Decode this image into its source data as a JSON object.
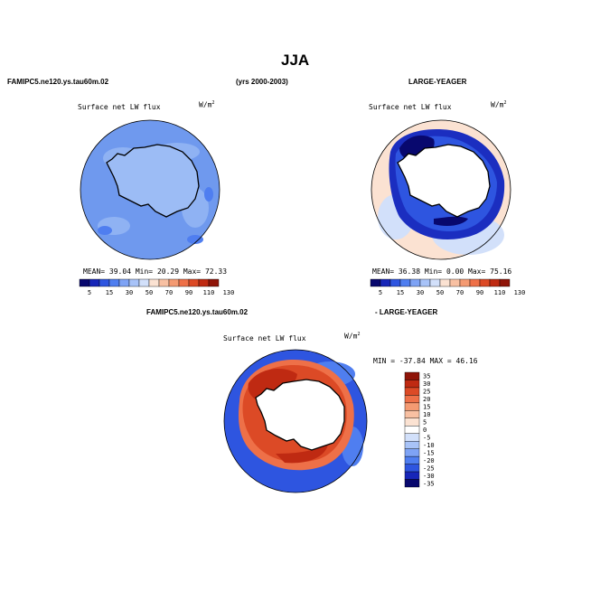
{
  "title": "JJA",
  "header_left": "FAMIPC5.ne120.ys.tau60m.02",
  "header_center": "(yrs 2000-2003)",
  "header_right": "LARGE-YEAGER",
  "panels": [
    {
      "label": "Surface net LW flux",
      "unit_base": "W/m",
      "unit_exp": "2",
      "stats": {
        "mean_label": "MEAN=",
        "mean": "39.04",
        "min_label": "Min=",
        "min": "20.29",
        "max_label": "Max=",
        "max": "72.33"
      }
    },
    {
      "label": "Surface net LW flux",
      "unit_base": "W/m",
      "unit_exp": "2",
      "stats": {
        "mean_label": "MEAN=",
        "mean": "36.38",
        "min_label": "Min=",
        "min": "0.00",
        "max_label": "Max=",
        "max": "75.16"
      }
    }
  ],
  "colorbar_top": {
    "ticks": [
      "5",
      "15",
      "30",
      "50",
      "70",
      "90",
      "110",
      "130"
    ],
    "colors": [
      "#08086e",
      "#1726b8",
      "#2e55e0",
      "#4f7ef0",
      "#7ea3f5",
      "#a8c3f8",
      "#d2e0fa",
      "#fbe2d2",
      "#f8c0a2",
      "#f49a72",
      "#ee7048",
      "#dc4a26",
      "#bf2a12",
      "#8f1408"
    ]
  },
  "diff_header_left": "FAMIPC5.ne120.ys.tau60m.02",
  "diff_header_right": "- LARGE-YEAGER",
  "diff_panel": {
    "label": "Surface net LW flux",
    "unit_base": "W/m",
    "unit_exp": "2",
    "minmax": "MIN = -37.84 MAX =  46.16"
  },
  "colorbar_diff": {
    "ticks": [
      "35",
      "30",
      "25",
      "20",
      "15",
      "10",
      "5",
      "0",
      "-5",
      "-10",
      "-15",
      "-20",
      "-25",
      "-30",
      "-35"
    ],
    "colors": [
      "#8f1408",
      "#bf2a12",
      "#dc4a26",
      "#ee7048",
      "#f49a72",
      "#f8c0a2",
      "#fbe2d2",
      "#ffffff",
      "#d2e0fa",
      "#a8c3f8",
      "#7ea3f5",
      "#4f7ef0",
      "#2e55e0",
      "#1726b8",
      "#08086e"
    ]
  }
}
